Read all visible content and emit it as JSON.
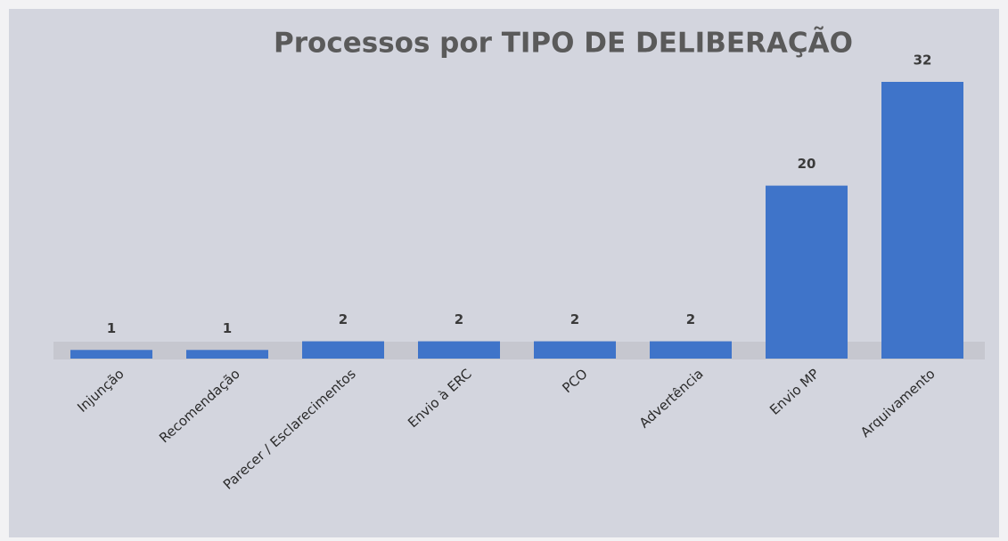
{
  "chart_data": {
    "type": "bar",
    "title": "Processos por TIPO DE DELIBERAÇÃO",
    "categories": [
      "Injunção",
      "Recomendação",
      "Parecer / Esclarecimentos",
      "Envio à ERC",
      "PCO",
      "Advertência",
      "Envio MP",
      "Arquivamento"
    ],
    "values": [
      1,
      1,
      2,
      2,
      2,
      2,
      20,
      32
    ],
    "color": "#3f74c9"
  }
}
